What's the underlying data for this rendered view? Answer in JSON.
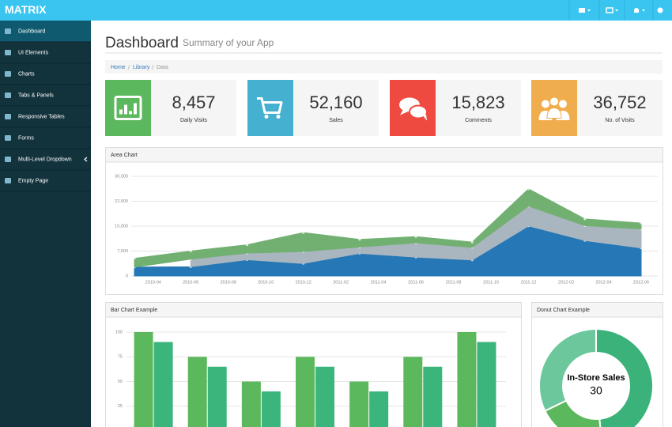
{
  "topbar": {
    "brand": "MATRIX"
  },
  "sidebar": {
    "items": [
      "Dashboard",
      "UI Elements",
      "Charts",
      "Tabs & Panels",
      "Responsive Tables",
      "Forms",
      "Multi-Level Dropdown",
      "Empty Page"
    ]
  },
  "header": {
    "title": "Dashboard",
    "subtitle": "Summary of your App"
  },
  "breadcrumb": [
    "Home",
    "Library",
    "Data"
  ],
  "stats": [
    {
      "value": "8,457",
      "label": "Daily Visits",
      "color": "#5cb85c"
    },
    {
      "value": "52,160",
      "label": "Sales",
      "color": "#46b0d1"
    },
    {
      "value": "15,823",
      "label": "Comments",
      "color": "#ef4a3f"
    },
    {
      "value": "36,752",
      "label": "No. of Visits",
      "color": "#f0ad4e"
    }
  ],
  "chart_data": [
    {
      "type": "area",
      "title": "Area Chart",
      "stacked": true,
      "x": [
        "2010-03",
        "2010-06",
        "2010-09",
        "2010-12",
        "2011-03",
        "2011-06",
        "2011-09",
        "2011-12",
        "2012-03",
        "2012-06"
      ],
      "xlim": [
        "2010-03",
        "2012-06"
      ],
      "xticks": [
        "2010-04",
        "2010-06",
        "2010-08",
        "2010-10",
        "2010-12",
        "2011-02",
        "2011-04",
        "2011-06",
        "2011-08",
        "2011-10",
        "2011-12",
        "2012-02",
        "2012-04",
        "2012-06"
      ],
      "ylim": [
        0,
        30000
      ],
      "yticks": [
        0,
        {
          "value": 7500,
          "label": "7,500"
        },
        {
          "value": 15000,
          "label": "15,000"
        },
        {
          "value": 22500,
          "label": "22,500"
        },
        {
          "value": 30000,
          "label": "30,000"
        }
      ],
      "grid": true,
      "series": [
        {
          "color": "#2577b5",
          "values": [
            2666,
            2778,
            4912,
            3767,
            6810,
            5670,
            4820,
            15073,
            10687,
            8432
          ]
        },
        {
          "color": "#a9b6c0",
          "values": [
            null,
            2294,
            1969,
            3597,
            1914,
            4293,
            3795,
            5967,
            4460,
            5713
          ]
        },
        {
          "color": "#72b072",
          "values": [
            2647,
            2441,
            2501,
            5689,
            2293,
            1881,
            1588,
            5175,
            2028,
            1791
          ]
        }
      ]
    },
    {
      "type": "bar",
      "title": "Bar Chart Example",
      "ylim": [
        0,
        100
      ],
      "yticks": [
        25,
        50,
        75,
        100
      ],
      "grid": true,
      "series": [
        {
          "color": "#5cb85c",
          "values": [
            100,
            75,
            50,
            75,
            50,
            75,
            100
          ]
        },
        {
          "color": "#3cb57c",
          "values": [
            90,
            65,
            40,
            65,
            40,
            65,
            90
          ]
        }
      ]
    },
    {
      "type": "donut",
      "title": "Donut Chart Example",
      "center_label": "In-Store Sales",
      "values": [
        30,
        12,
        20
      ],
      "colors": [
        "#3ab27a",
        "#5cb85c",
        "#6cc89c"
      ]
    }
  ]
}
